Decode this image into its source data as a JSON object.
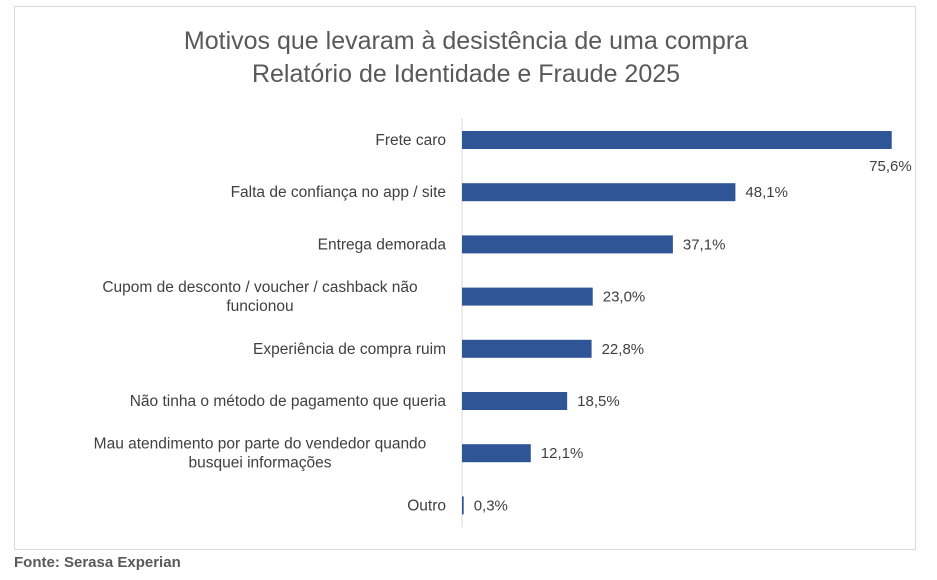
{
  "chart_data": {
    "type": "bar",
    "orientation": "horizontal",
    "title": "Motivos que levaram à desistência de uma compra",
    "subtitle": "Relatório de Identidade e Fraude 2025",
    "categories": [
      [
        "Frete caro"
      ],
      [
        "Falta de confiança no app / site"
      ],
      [
        "Entrega demorada"
      ],
      [
        "Cupom de desconto / voucher / cashback não",
        "funcionou"
      ],
      [
        "Experiência de compra ruim"
      ],
      [
        "Não tinha o método de pagamento que queria"
      ],
      [
        "Mau atendimento por parte do vendedor quando",
        "busquei informações"
      ],
      [
        "Outro"
      ]
    ],
    "values": [
      75.6,
      48.1,
      37.1,
      23.0,
      22.8,
      18.5,
      12.1,
      0.3
    ],
    "value_labels": [
      "75,6%",
      "48,1%",
      "37,1%",
      "23,0%",
      "22,8%",
      "18,5%",
      "12,1%",
      "0,3%"
    ],
    "xlim": [
      0,
      76
    ],
    "bar_color": "#2f5597",
    "grid": false,
    "legend": "none"
  },
  "source": "Fonte: Serasa Experian"
}
